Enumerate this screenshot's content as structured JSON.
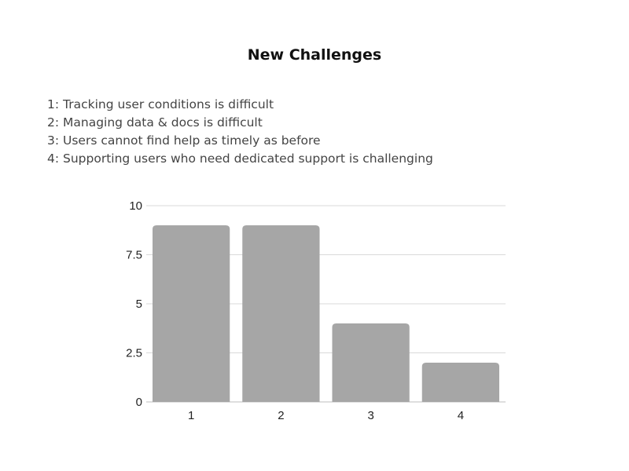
{
  "chart_data": {
    "type": "bar",
    "title": "New Challenges",
    "notes": [
      "1: Tracking user conditions is difficult",
      "2: Managing data & docs is difficult",
      "3: Users cannot find help as timely as before",
      "4: Supporting users who need dedicated support is challenging"
    ],
    "categories": [
      "1",
      "2",
      "3",
      "4"
    ],
    "values": [
      9,
      9,
      4,
      2
    ],
    "ylim": [
      0,
      10
    ],
    "yticks": [
      0,
      2.5,
      5,
      7.5,
      10
    ],
    "ytick_labels": [
      "0",
      "2.5",
      "5",
      "7.5",
      "10"
    ],
    "xlabel": "",
    "ylabel": "",
    "grid": true,
    "bar_color": "#a6a6a6",
    "grid_color": "#d9d9d9"
  }
}
